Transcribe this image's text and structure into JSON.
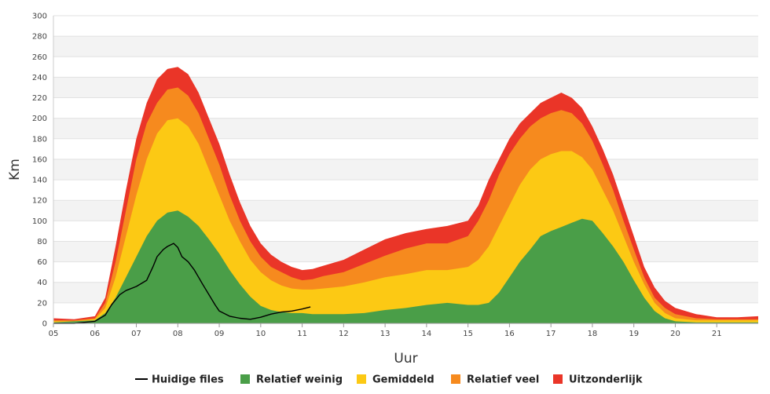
{
  "chart_data": {
    "type": "area",
    "xlabel": "Uur",
    "ylabel": "Km",
    "ylim": [
      0,
      300
    ],
    "y_ticks": [
      0,
      20,
      40,
      60,
      80,
      100,
      120,
      140,
      160,
      180,
      200,
      220,
      240,
      260,
      280,
      300
    ],
    "x_ticks": [
      {
        "hour": 5,
        "label": "05"
      },
      {
        "hour": 6,
        "label": "06"
      },
      {
        "hour": 7,
        "label": "07"
      },
      {
        "hour": 8,
        "label": "08"
      },
      {
        "hour": 9,
        "label": "09"
      },
      {
        "hour": 10,
        "label": "10"
      },
      {
        "hour": 11,
        "label": "11"
      },
      {
        "hour": 12,
        "label": "12"
      },
      {
        "hour": 13,
        "label": "13"
      },
      {
        "hour": 14,
        "label": "14"
      },
      {
        "hour": 15,
        "label": "15"
      },
      {
        "hour": 16,
        "label": "16"
      },
      {
        "hour": 17,
        "label": "17"
      },
      {
        "hour": 18,
        "label": "18"
      },
      {
        "hour": 19,
        "label": "19"
      },
      {
        "hour": 20,
        "label": "20"
      },
      {
        "hour": 21,
        "label": "21"
      }
    ],
    "xlim": [
      5,
      22
    ],
    "grid": true,
    "stacked": true,
    "legend_position": "bottom",
    "x": [
      5.0,
      5.5,
      6.0,
      6.25,
      6.5,
      6.75,
      7.0,
      7.25,
      7.5,
      7.75,
      8.0,
      8.25,
      8.5,
      8.75,
      9.0,
      9.25,
      9.5,
      9.75,
      10.0,
      10.25,
      10.5,
      10.75,
      11.0,
      11.25,
      11.5,
      12.0,
      12.5,
      13.0,
      13.5,
      14.0,
      14.5,
      15.0,
      15.25,
      15.5,
      15.75,
      16.0,
      16.25,
      16.5,
      16.75,
      17.0,
      17.25,
      17.5,
      17.75,
      18.0,
      18.25,
      18.5,
      18.75,
      19.0,
      19.25,
      19.5,
      19.75,
      20.0,
      20.5,
      21.0,
      21.5,
      22.0
    ],
    "series": [
      {
        "name": "Relatief weinig",
        "color": "#4a9e48",
        "values": [
          1,
          2,
          3,
          10,
          25,
          45,
          65,
          85,
          100,
          108,
          110,
          104,
          95,
          82,
          68,
          52,
          38,
          26,
          17,
          13,
          11,
          10,
          10,
          9,
          9,
          9,
          10,
          13,
          15,
          18,
          20,
          18,
          18,
          20,
          30,
          45,
          60,
          72,
          85,
          90,
          94,
          98,
          102,
          100,
          88,
          75,
          60,
          42,
          25,
          12,
          5,
          2,
          1,
          1,
          1,
          1
        ]
      },
      {
        "name": "Gemiddeld",
        "color": "#fcc914",
        "values": [
          2,
          2,
          4,
          15,
          45,
          85,
          125,
          160,
          185,
          198,
          200,
          192,
          175,
          150,
          125,
          100,
          80,
          62,
          50,
          42,
          37,
          34,
          33,
          33,
          34,
          36,
          40,
          45,
          48,
          52,
          52,
          55,
          62,
          75,
          95,
          115,
          135,
          150,
          160,
          165,
          168,
          168,
          162,
          150,
          130,
          110,
          85,
          60,
          38,
          20,
          10,
          5,
          3,
          3,
          3,
          3
        ]
      },
      {
        "name": "Relatief veel",
        "color": "#f68a1e",
        "values": [
          3,
          3,
          5,
          20,
          60,
          110,
          160,
          195,
          215,
          228,
          230,
          222,
          205,
          180,
          155,
          125,
          100,
          80,
          65,
          55,
          50,
          45,
          42,
          43,
          46,
          50,
          58,
          66,
          73,
          78,
          78,
          85,
          100,
          120,
          145,
          165,
          180,
          192,
          200,
          205,
          208,
          205,
          195,
          178,
          155,
          130,
          100,
          72,
          45,
          25,
          15,
          9,
          5,
          4,
          4,
          4
        ]
      },
      {
        "name": "Uitzonderlijk",
        "color": "#ea3528",
        "values": [
          5,
          4,
          7,
          25,
          75,
          130,
          180,
          215,
          238,
          248,
          250,
          243,
          225,
          200,
          175,
          145,
          118,
          95,
          78,
          67,
          60,
          55,
          52,
          53,
          56,
          62,
          72,
          82,
          88,
          92,
          95,
          100,
          115,
          140,
          160,
          180,
          195,
          205,
          215,
          220,
          225,
          220,
          210,
          192,
          170,
          145,
          115,
          85,
          55,
          35,
          22,
          15,
          9,
          6,
          6,
          7
        ]
      }
    ],
    "current_line": {
      "name": "Huidige files",
      "color": "#000000",
      "x": [
        5.0,
        5.5,
        5.75,
        6.0,
        6.25,
        6.4,
        6.6,
        6.75,
        7.0,
        7.25,
        7.4,
        7.5,
        7.65,
        7.75,
        7.9,
        8.0,
        8.1,
        8.25,
        8.4,
        8.5,
        8.6,
        8.75,
        8.9,
        9.0,
        9.25,
        9.5,
        9.75,
        10.0,
        10.25,
        10.5,
        10.75,
        11.0,
        11.2
      ],
      "values": [
        0,
        0,
        1,
        2,
        8,
        18,
        28,
        32,
        36,
        42,
        55,
        65,
        72,
        75,
        78,
        74,
        65,
        60,
        52,
        45,
        38,
        28,
        18,
        12,
        7,
        5,
        4,
        6,
        9,
        11,
        12,
        14,
        16
      ]
    },
    "legend": [
      {
        "label": "Huidige files",
        "kind": "line",
        "color": "#000000"
      },
      {
        "label": "Relatief weinig",
        "kind": "box",
        "color": "#4a9e48"
      },
      {
        "label": "Gemiddeld",
        "kind": "box",
        "color": "#fcc914"
      },
      {
        "label": "Relatief veel",
        "kind": "box",
        "color": "#f68a1e"
      },
      {
        "label": "Uitzonderlijk",
        "kind": "box",
        "color": "#ea3528"
      }
    ]
  }
}
